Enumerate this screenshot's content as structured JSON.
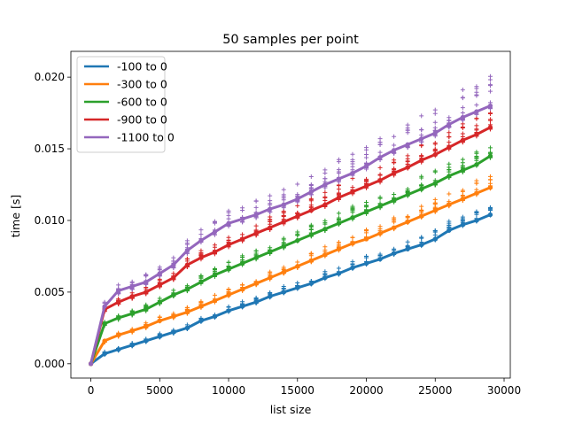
{
  "chart_data": {
    "type": "line",
    "title": "50 samples per point",
    "xlabel": "list size",
    "ylabel": "time [s]",
    "xlim": [
      -1450,
      30450
    ],
    "ylim": [
      -0.001,
      0.0218
    ],
    "x_ticks": [
      0,
      5000,
      10000,
      15000,
      20000,
      25000,
      30000
    ],
    "x_tick_labels": [
      "0",
      "5000",
      "10000",
      "15000",
      "20000",
      "25000",
      "30000"
    ],
    "y_ticks": [
      0.0,
      0.005,
      0.01,
      0.015,
      0.02
    ],
    "y_tick_labels": [
      "0.000",
      "0.005",
      "0.010",
      "0.015",
      "0.020"
    ],
    "grid": false,
    "legend_position": "top-left",
    "x": [
      0,
      1000,
      2000,
      3000,
      4000,
      5000,
      6000,
      7000,
      8000,
      9000,
      10000,
      11000,
      12000,
      13000,
      14000,
      15000,
      16000,
      17000,
      18000,
      19000,
      20000,
      21000,
      22000,
      23000,
      24000,
      25000,
      26000,
      27000,
      28000,
      29000
    ],
    "series": [
      {
        "name": "-100 to 0",
        "color": "#1f77b4",
        "values": [
          0.0,
          0.0007,
          0.001,
          0.0013,
          0.0016,
          0.0019,
          0.0022,
          0.0025,
          0.003,
          0.0033,
          0.0037,
          0.004,
          0.0043,
          0.0047,
          0.005,
          0.0053,
          0.0056,
          0.006,
          0.0063,
          0.0067,
          0.007,
          0.0073,
          0.0077,
          0.008,
          0.0083,
          0.0087,
          0.0093,
          0.0097,
          0.01,
          0.0104
        ],
        "spread": 0.0006
      },
      {
        "name": "-300 to 0",
        "color": "#ff7f0e",
        "values": [
          0.0,
          0.0016,
          0.002,
          0.0023,
          0.0026,
          0.003,
          0.0033,
          0.0036,
          0.004,
          0.0044,
          0.0048,
          0.0052,
          0.0056,
          0.006,
          0.0064,
          0.0068,
          0.0072,
          0.0076,
          0.008,
          0.0084,
          0.0087,
          0.0091,
          0.0095,
          0.0099,
          0.0103,
          0.0107,
          0.0111,
          0.0115,
          0.0119,
          0.0123
        ],
        "spread": 0.0008
      },
      {
        "name": "-600 to 0",
        "color": "#2ca02c",
        "values": [
          0.0,
          0.0028,
          0.0032,
          0.0035,
          0.0038,
          0.0043,
          0.0048,
          0.0052,
          0.0057,
          0.0062,
          0.0066,
          0.007,
          0.0074,
          0.0078,
          0.0082,
          0.0086,
          0.009,
          0.0094,
          0.0098,
          0.0102,
          0.0106,
          0.011,
          0.0114,
          0.0118,
          0.0122,
          0.0126,
          0.0131,
          0.0135,
          0.0139,
          0.0145
        ],
        "spread": 0.001
      },
      {
        "name": "-900 to 0",
        "color": "#d62728",
        "values": [
          0.0,
          0.0038,
          0.0043,
          0.0047,
          0.005,
          0.0055,
          0.006,
          0.0069,
          0.0074,
          0.0078,
          0.0083,
          0.0087,
          0.0091,
          0.0095,
          0.0099,
          0.0103,
          0.0107,
          0.0111,
          0.0116,
          0.012,
          0.0124,
          0.0128,
          0.0133,
          0.0137,
          0.0142,
          0.0146,
          0.0151,
          0.0156,
          0.016,
          0.0165
        ],
        "spread": 0.0012
      },
      {
        "name": "-1100 to 0",
        "color": "#9467bd",
        "values": [
          0.0,
          0.004,
          0.0051,
          0.0054,
          0.0057,
          0.0063,
          0.0069,
          0.0079,
          0.0086,
          0.0092,
          0.0098,
          0.0101,
          0.0104,
          0.0108,
          0.0111,
          0.0115,
          0.012,
          0.0125,
          0.0129,
          0.0133,
          0.0138,
          0.0144,
          0.0149,
          0.0153,
          0.0157,
          0.0161,
          0.0167,
          0.0172,
          0.0176,
          0.018
        ],
        "spread": 0.0018
      }
    ]
  }
}
